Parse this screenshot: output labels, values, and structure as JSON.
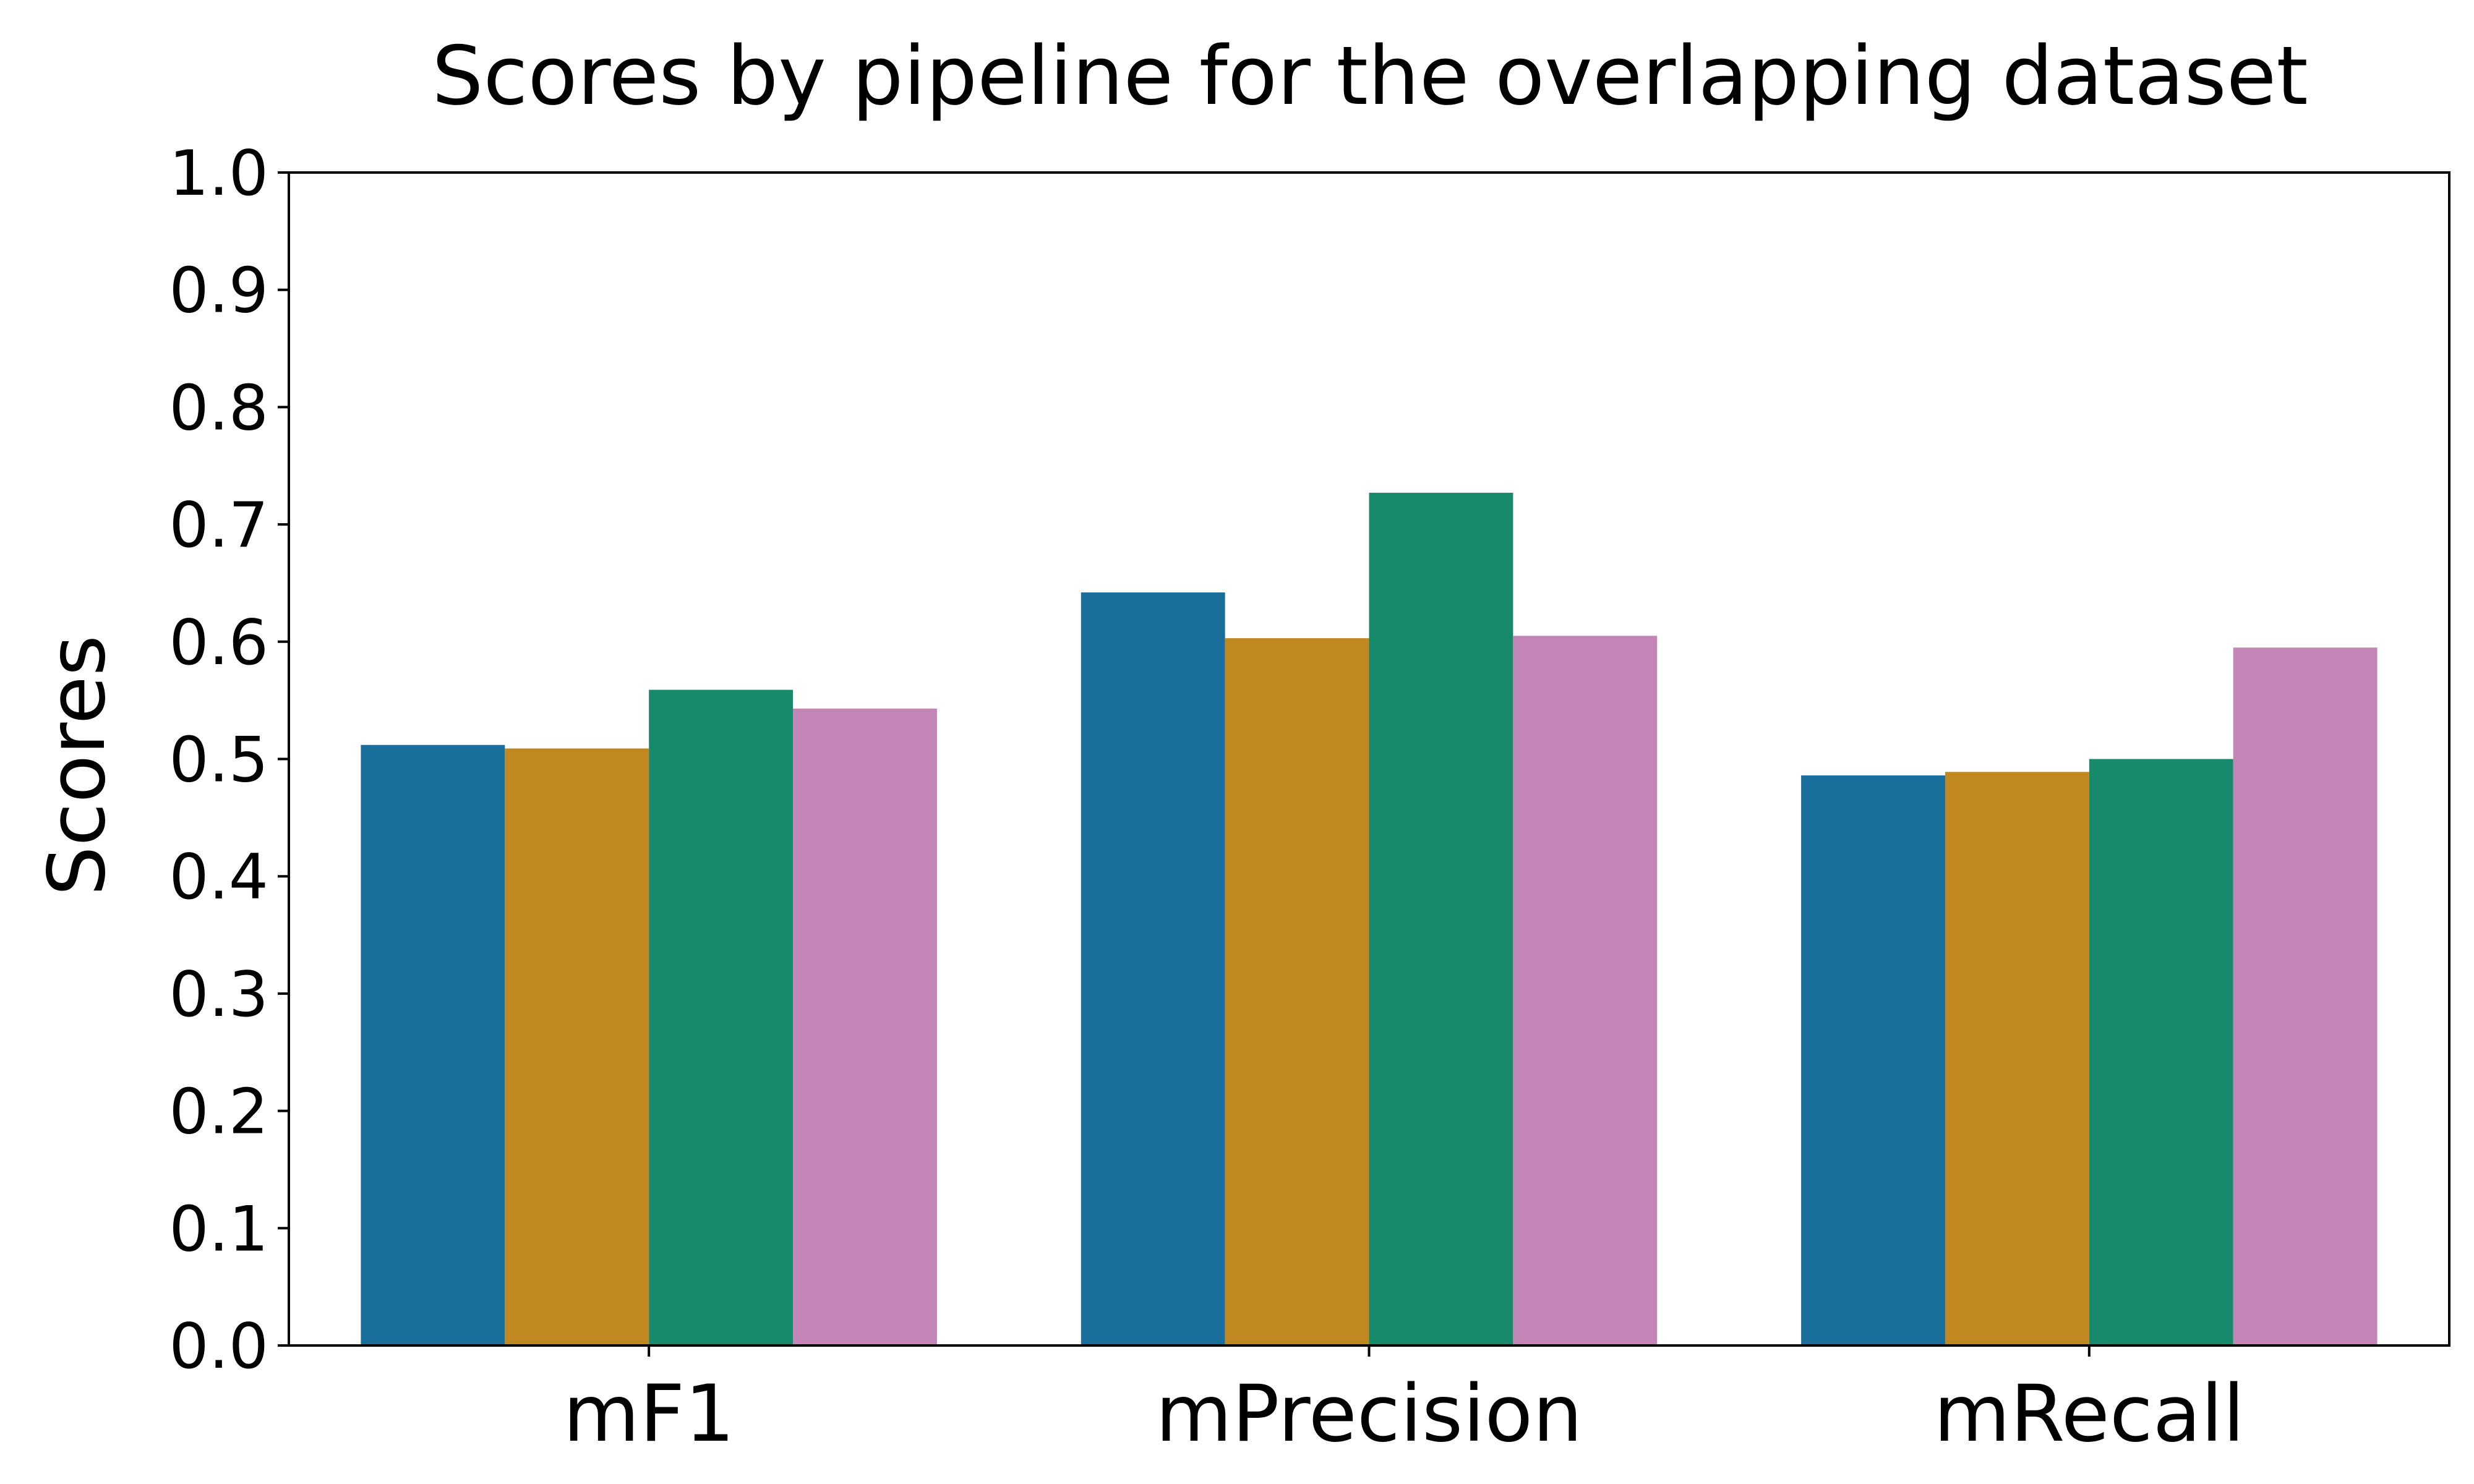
{
  "chart_data": {
    "type": "bar",
    "title": "Scores by pipeline for the overlapping dataset",
    "xlabel": "",
    "ylabel": "Scores",
    "ylim": [
      0,
      1.0
    ],
    "yticks": [
      "0.0",
      "0.1",
      "0.2",
      "0.3",
      "0.4",
      "0.5",
      "0.6",
      "0.7",
      "0.8",
      "0.9",
      "1.0"
    ],
    "categories": [
      "mF1",
      "mPrecision",
      "mRecall"
    ],
    "grid": false,
    "legend": "none",
    "series": [
      {
        "color": "#1a6e9c",
        "values": [
          0.512,
          0.642,
          0.486
        ]
      },
      {
        "color": "#c18821",
        "values": [
          0.509,
          0.603,
          0.489
        ]
      },
      {
        "color": "#178a6b",
        "values": [
          0.559,
          0.727,
          0.5
        ]
      },
      {
        "color": "#c385b5",
        "values": [
          0.543,
          0.605,
          0.595
        ]
      }
    ]
  }
}
